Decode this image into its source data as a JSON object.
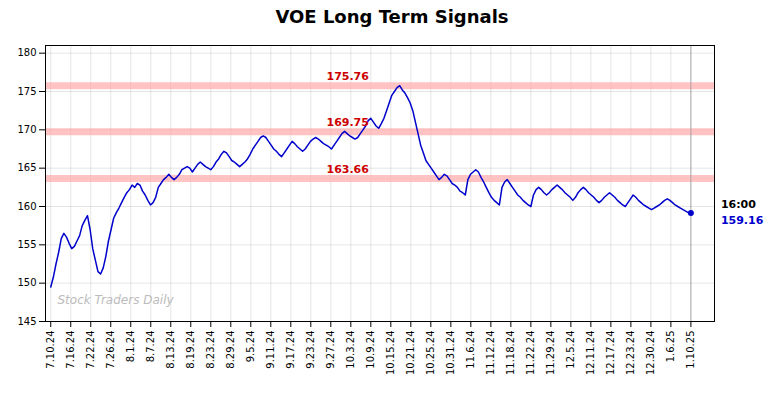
{
  "chart_data": {
    "type": "line",
    "title": "VOE Long Term Signals",
    "x": [
      0,
      1,
      2,
      3,
      4,
      5,
      6,
      7,
      8,
      9,
      10,
      11,
      12,
      13,
      14,
      15,
      16,
      17,
      18,
      19,
      20,
      21,
      22,
      23,
      24,
      25,
      26,
      27,
      28,
      29,
      30,
      31,
      32,
      33,
      34,
      35,
      36,
      37,
      38,
      39,
      40,
      41,
      42,
      43,
      44,
      45,
      46,
      47,
      48,
      49,
      50,
      51,
      52,
      53,
      54,
      55,
      56,
      57,
      58,
      59,
      60,
      61,
      62,
      63,
      64,
      65,
      66,
      67,
      68,
      69,
      70,
      71,
      72,
      73,
      74,
      75,
      76,
      77,
      78,
      79,
      80,
      81,
      82,
      83,
      84,
      85,
      86,
      87,
      88,
      89,
      90,
      91,
      92,
      93,
      94,
      95,
      96,
      97,
      98,
      99,
      100,
      101,
      102,
      103,
      104,
      105,
      106,
      107,
      108,
      109,
      110,
      111,
      112,
      113,
      114,
      115,
      116,
      117,
      118,
      119,
      120,
      121,
      122,
      123,
      124,
      125,
      126,
      127,
      128,
      129,
      130,
      131,
      132,
      133,
      134,
      135,
      136,
      137,
      138,
      139,
      140,
      141,
      142,
      143,
      144,
      145,
      146,
      147,
      148,
      149,
      150,
      151,
      152,
      153,
      154,
      155,
      156,
      157,
      158,
      159,
      160,
      161,
      162,
      163,
      164,
      165,
      166,
      167,
      168,
      169,
      170,
      171,
      172,
      173,
      174,
      175,
      176,
      177,
      178,
      179,
      180,
      181,
      182,
      183,
      184,
      185,
      186,
      187,
      188,
      189,
      190,
      191,
      192,
      193,
      194,
      195,
      196,
      197,
      198,
      199,
      200,
      201,
      202,
      203,
      204,
      205,
      206,
      207,
      208,
      209,
      210,
      211,
      212,
      213,
      214,
      215,
      216,
      217,
      218,
      219,
      220,
      221,
      222,
      223,
      224,
      225,
      226,
      227,
      228,
      229,
      230,
      231,
      232,
      233,
      234,
      235,
      236,
      237,
      238,
      239,
      240,
      241,
      242,
      243,
      244
    ],
    "series": [
      {
        "color": "#0000cc",
        "values": [
          149.5,
          150.8,
          152.5,
          154.0,
          155.8,
          156.5,
          156.0,
          155.2,
          154.5,
          154.8,
          155.5,
          156.2,
          157.5,
          158.2,
          158.8,
          157.0,
          154.5,
          153.0,
          151.5,
          151.2,
          152.0,
          153.5,
          155.5,
          157.0,
          158.5,
          159.2,
          159.8,
          160.5,
          161.2,
          161.8,
          162.2,
          162.8,
          162.5,
          163.0,
          162.8,
          162.0,
          161.5,
          160.8,
          160.2,
          160.5,
          161.2,
          162.5,
          163.0,
          163.5,
          163.8,
          164.2,
          163.8,
          163.5,
          163.8,
          164.2,
          164.8,
          165.0,
          165.2,
          165.0,
          164.5,
          165.0,
          165.5,
          165.8,
          165.5,
          165.2,
          165.0,
          164.8,
          165.2,
          165.8,
          166.2,
          166.8,
          167.2,
          167.0,
          166.5,
          166.0,
          165.8,
          165.5,
          165.2,
          165.5,
          165.8,
          166.2,
          166.8,
          167.5,
          168.0,
          168.5,
          169.0,
          169.2,
          169.0,
          168.5,
          168.0,
          167.5,
          167.2,
          166.8,
          166.5,
          167.0,
          167.5,
          168.0,
          168.5,
          168.2,
          167.8,
          167.5,
          167.2,
          167.5,
          168.0,
          168.5,
          168.8,
          169.0,
          168.8,
          168.5,
          168.2,
          168.0,
          167.8,
          167.5,
          168.0,
          168.5,
          169.0,
          169.5,
          169.8,
          169.5,
          169.2,
          169.0,
          168.8,
          169.0,
          169.5,
          170.0,
          170.5,
          171.2,
          171.5,
          171.0,
          170.5,
          170.2,
          170.8,
          171.5,
          172.5,
          173.5,
          174.5,
          175.0,
          175.5,
          175.76,
          175.2,
          174.8,
          174.2,
          173.5,
          172.5,
          171.0,
          169.5,
          168.0,
          167.0,
          166.0,
          165.5,
          165.0,
          164.5,
          164.0,
          163.5,
          163.8,
          164.2,
          164.0,
          163.5,
          163.0,
          162.8,
          162.5,
          162.0,
          161.8,
          161.5,
          163.5,
          164.2,
          164.5,
          164.8,
          164.5,
          163.8,
          163.2,
          162.5,
          161.8,
          161.2,
          160.8,
          160.5,
          160.2,
          162.5,
          163.2,
          163.5,
          163.0,
          162.5,
          162.0,
          161.5,
          161.2,
          160.8,
          160.5,
          160.2,
          160.0,
          161.5,
          162.2,
          162.5,
          162.2,
          161.8,
          161.5,
          161.8,
          162.2,
          162.5,
          162.8,
          162.5,
          162.2,
          161.8,
          161.5,
          161.2,
          160.8,
          161.2,
          161.8,
          162.2,
          162.5,
          162.2,
          161.8,
          161.5,
          161.2,
          160.8,
          160.5,
          160.8,
          161.2,
          161.5,
          161.8,
          161.5,
          161.2,
          160.8,
          160.5,
          160.2,
          160.0,
          160.5,
          161.0,
          161.5,
          161.2,
          160.8,
          160.5,
          160.2,
          160.0,
          159.8,
          159.6,
          159.8,
          160.0,
          160.2,
          160.5,
          160.8,
          161.0,
          160.8,
          160.5,
          160.2,
          160.0,
          159.8,
          159.6,
          159.4,
          159.2,
          159.16
        ]
      }
    ],
    "xlim": [
      -2,
      253
    ],
    "xticks": [
      {
        "value": 0,
        "label": "7.10.24"
      },
      {
        "value": 7.625,
        "label": "7.16.24"
      },
      {
        "value": 15.25,
        "label": "7.22.24"
      },
      {
        "value": 22.875,
        "label": "7.26.24"
      },
      {
        "value": 30.5,
        "label": "8.1.24"
      },
      {
        "value": 38.125,
        "label": "8.7.24"
      },
      {
        "value": 45.75,
        "label": "8.13.24"
      },
      {
        "value": 53.375,
        "label": "8.19.24"
      },
      {
        "value": 61,
        "label": "8.23.24"
      },
      {
        "value": 68.625,
        "label": "8.29.24"
      },
      {
        "value": 76.25,
        "label": "9.5.24"
      },
      {
        "value": 83.875,
        "label": "9.11.24"
      },
      {
        "value": 91.5,
        "label": "9.17.24"
      },
      {
        "value": 99.125,
        "label": "9.23.24"
      },
      {
        "value": 106.75,
        "label": "9.27.24"
      },
      {
        "value": 114.375,
        "label": "10.3.24"
      },
      {
        "value": 122,
        "label": "10.9.24"
      },
      {
        "value": 129.625,
        "label": "10.15.24"
      },
      {
        "value": 137.25,
        "label": "10.21.24"
      },
      {
        "value": 144.875,
        "label": "10.25.24"
      },
      {
        "value": 152.5,
        "label": "10.31.24"
      },
      {
        "value": 160.125,
        "label": "11.6.24"
      },
      {
        "value": 167.75,
        "label": "11.12.24"
      },
      {
        "value": 175.375,
        "label": "11.18.24"
      },
      {
        "value": 183,
        "label": "11.22.24"
      },
      {
        "value": 190.625,
        "label": "11.29.24"
      },
      {
        "value": 198.25,
        "label": "12.5.24"
      },
      {
        "value": 205.875,
        "label": "12.11.24"
      },
      {
        "value": 213.5,
        "label": "12.17.24"
      },
      {
        "value": 221.125,
        "label": "12.23.24"
      },
      {
        "value": 228.75,
        "label": "12.30.24"
      },
      {
        "value": 236.375,
        "label": "1.6.25"
      },
      {
        "value": 244,
        "label": "1.10.25"
      }
    ],
    "ylim": [
      145,
      181
    ],
    "yticks": [
      145,
      150,
      155,
      160,
      165,
      170,
      175,
      180
    ],
    "grid": true,
    "hlines": [
      {
        "y": 175.76,
        "label": "175.76",
        "color": "#ffaaaa",
        "label_color": "#cc0000"
      },
      {
        "y": 169.75,
        "label": "169.75",
        "color": "#ffaaaa",
        "label_color": "#cc0000"
      },
      {
        "y": 163.66,
        "label": "163.66",
        "color": "#ffaaaa",
        "label_color": "#cc0000"
      }
    ],
    "annotations": [
      {
        "x": 244,
        "y": 159.16,
        "text": "16:00",
        "color": "#000000"
      },
      {
        "x": 244,
        "y": 159.16,
        "text": "159.16",
        "color": "#0000cc"
      }
    ],
    "watermark": "Stock Traders Daily",
    "watermark_color": "#bbbbbb"
  }
}
